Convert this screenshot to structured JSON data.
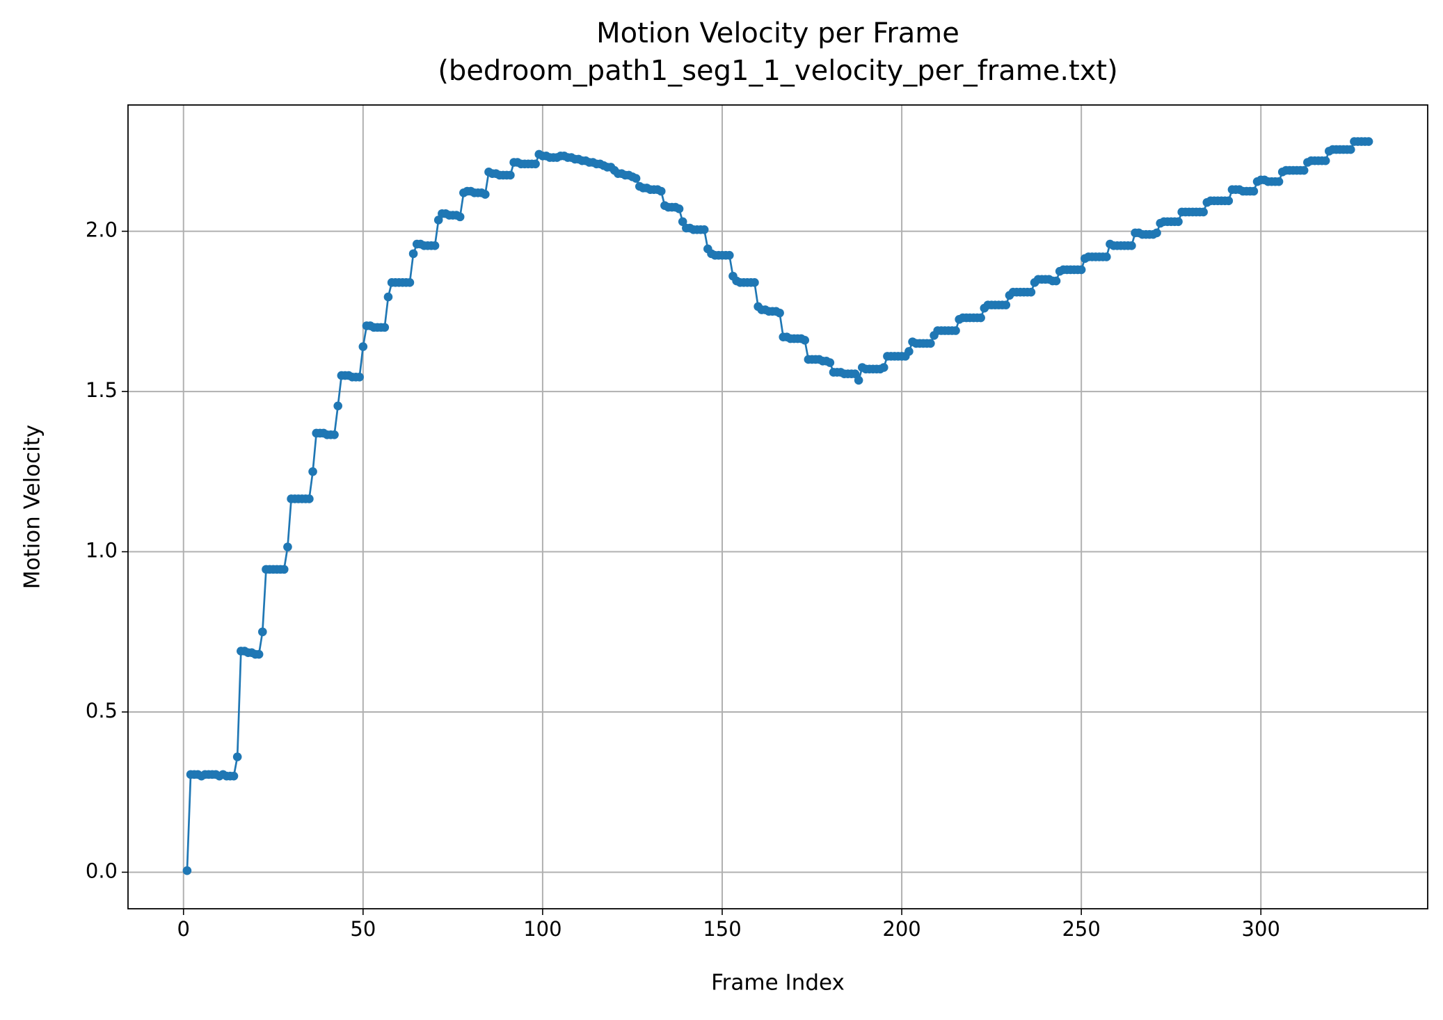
{
  "chart_data": {
    "type": "line",
    "title": "Motion Velocity per Frame",
    "subtitle": "(bedroom_path1_seg1_1_velocity_per_frame.txt)",
    "x_label": "Frame Index",
    "y_label": "Motion Velocity",
    "color": "#1f77b4",
    "markers": true,
    "grid": true,
    "xlim": [
      -15.45,
      346.45
    ],
    "ylim": [
      -0.114,
      2.394
    ],
    "xticks": [
      0,
      50,
      100,
      150,
      200,
      250,
      300
    ],
    "yticks": [
      {
        "value": 0,
        "label": "0.0"
      },
      0.5,
      {
        "value": 1,
        "label": "1.0"
      },
      1.5,
      {
        "value": 2,
        "label": "2.0"
      }
    ],
    "x": [
      1,
      2,
      3,
      4,
      5,
      6,
      7,
      8,
      9,
      10,
      11,
      12,
      13,
      14,
      15,
      16,
      17,
      18,
      19,
      20,
      21,
      22,
      23,
      24,
      25,
      26,
      27,
      28,
      29,
      30,
      31,
      32,
      33,
      34,
      35,
      36,
      37,
      38,
      39,
      40,
      41,
      42,
      43,
      44,
      45,
      46,
      47,
      48,
      49,
      50,
      51,
      52,
      53,
      54,
      55,
      56,
      57,
      58,
      59,
      60,
      61,
      62,
      63,
      64,
      65,
      66,
      67,
      68,
      69,
      70,
      71,
      72,
      73,
      74,
      75,
      76,
      77,
      78,
      79,
      80,
      81,
      82,
      83,
      84,
      85,
      86,
      87,
      88,
      89,
      90,
      91,
      92,
      93,
      94,
      95,
      96,
      97,
      98,
      99,
      100,
      101,
      102,
      103,
      104,
      105,
      106,
      107,
      108,
      109,
      110,
      111,
      112,
      113,
      114,
      115,
      116,
      117,
      118,
      119,
      120,
      121,
      122,
      123,
      124,
      125,
      126,
      127,
      128,
      129,
      130,
      131,
      132,
      133,
      134,
      135,
      136,
      137,
      138,
      139,
      140,
      141,
      142,
      143,
      144,
      145,
      146,
      147,
      148,
      149,
      150,
      151,
      152,
      153,
      154,
      155,
      156,
      157,
      158,
      159,
      160,
      161,
      162,
      163,
      164,
      165,
      166,
      167,
      168,
      169,
      170,
      171,
      172,
      173,
      174,
      175,
      176,
      177,
      178,
      179,
      180,
      181,
      182,
      183,
      184,
      185,
      186,
      187,
      188,
      189,
      190,
      191,
      192,
      193,
      194,
      195,
      196,
      197,
      198,
      199,
      200,
      201,
      202,
      203,
      204,
      205,
      206,
      207,
      208,
      209,
      210,
      211,
      212,
      213,
      214,
      215,
      216,
      217,
      218,
      219,
      220,
      221,
      222,
      223,
      224,
      225,
      226,
      227,
      228,
      229,
      230,
      231,
      232,
      233,
      234,
      235,
      236,
      237,
      238,
      239,
      240,
      241,
      242,
      243,
      244,
      245,
      246,
      247,
      248,
      249,
      250,
      251,
      252,
      253,
      254,
      255,
      256,
      257,
      258,
      259,
      260,
      261,
      262,
      263,
      264,
      265,
      266,
      267,
      268,
      269,
      270,
      271,
      272,
      273,
      274,
      275,
      276,
      277,
      278,
      279,
      280,
      281,
      282,
      283,
      284,
      285,
      286,
      287,
      288,
      289,
      290,
      291,
      292,
      293,
      294,
      295,
      296,
      297,
      298,
      299,
      300,
      301,
      302,
      303,
      304,
      305,
      306,
      307,
      308,
      309,
      310,
      311,
      312,
      313,
      314,
      315,
      316,
      317,
      318,
      319,
      320,
      321,
      322,
      323,
      324,
      325,
      326,
      327,
      328,
      329,
      330
    ],
    "values": [
      0.005,
      0.305,
      0.305,
      0.305,
      0.3,
      0.305,
      0.305,
      0.305,
      0.305,
      0.3,
      0.305,
      0.3,
      0.3,
      0.3,
      0.36,
      0.69,
      0.69,
      0.685,
      0.685,
      0.68,
      0.68,
      0.75,
      0.945,
      0.945,
      0.945,
      0.945,
      0.945,
      0.945,
      1.015,
      1.165,
      1.165,
      1.165,
      1.165,
      1.165,
      1.165,
      1.25,
      1.37,
      1.37,
      1.37,
      1.365,
      1.365,
      1.365,
      1.455,
      1.55,
      1.55,
      1.55,
      1.545,
      1.545,
      1.545,
      1.64,
      1.705,
      1.705,
      1.7,
      1.7,
      1.7,
      1.7,
      1.795,
      1.84,
      1.84,
      1.84,
      1.84,
      1.84,
      1.84,
      1.93,
      1.96,
      1.96,
      1.955,
      1.955,
      1.955,
      1.955,
      2.035,
      2.055,
      2.055,
      2.05,
      2.05,
      2.05,
      2.045,
      2.12,
      2.125,
      2.125,
      2.12,
      2.12,
      2.12,
      2.115,
      2.185,
      2.18,
      2.18,
      2.175,
      2.175,
      2.175,
      2.175,
      2.215,
      2.215,
      2.21,
      2.21,
      2.21,
      2.21,
      2.21,
      2.24,
      2.235,
      2.235,
      2.23,
      2.23,
      2.23,
      2.235,
      2.235,
      2.23,
      2.23,
      2.225,
      2.225,
      2.22,
      2.22,
      2.215,
      2.215,
      2.21,
      2.21,
      2.205,
      2.2,
      2.2,
      2.19,
      2.18,
      2.18,
      2.175,
      2.175,
      2.17,
      2.165,
      2.14,
      2.135,
      2.135,
      2.13,
      2.13,
      2.13,
      2.125,
      2.08,
      2.075,
      2.075,
      2.075,
      2.07,
      2.03,
      2.01,
      2.01,
      2.005,
      2.005,
      2.005,
      2.005,
      1.945,
      1.93,
      1.925,
      1.925,
      1.925,
      1.925,
      1.925,
      1.86,
      1.845,
      1.84,
      1.84,
      1.84,
      1.84,
      1.84,
      1.765,
      1.755,
      1.755,
      1.75,
      1.75,
      1.75,
      1.745,
      1.67,
      1.67,
      1.665,
      1.665,
      1.665,
      1.665,
      1.66,
      1.6,
      1.6,
      1.6,
      1.6,
      1.595,
      1.595,
      1.59,
      1.56,
      1.56,
      1.56,
      1.555,
      1.555,
      1.555,
      1.555,
      1.535,
      1.575,
      1.57,
      1.57,
      1.57,
      1.57,
      1.57,
      1.575,
      1.61,
      1.61,
      1.61,
      1.61,
      1.61,
      1.61,
      1.625,
      1.655,
      1.65,
      1.65,
      1.65,
      1.65,
      1.65,
      1.675,
      1.69,
      1.69,
      1.69,
      1.69,
      1.69,
      1.69,
      1.725,
      1.73,
      1.73,
      1.73,
      1.73,
      1.73,
      1.73,
      1.76,
      1.77,
      1.77,
      1.77,
      1.77,
      1.77,
      1.77,
      1.8,
      1.81,
      1.81,
      1.81,
      1.81,
      1.81,
      1.81,
      1.84,
      1.85,
      1.85,
      1.85,
      1.85,
      1.845,
      1.845,
      1.875,
      1.88,
      1.88,
      1.88,
      1.88,
      1.88,
      1.88,
      1.915,
      1.92,
      1.92,
      1.92,
      1.92,
      1.92,
      1.92,
      1.96,
      1.955,
      1.955,
      1.955,
      1.955,
      1.955,
      1.955,
      1.995,
      1.995,
      1.99,
      1.99,
      1.99,
      1.99,
      1.995,
      2.025,
      2.03,
      2.03,
      2.03,
      2.03,
      2.03,
      2.06,
      2.06,
      2.06,
      2.06,
      2.06,
      2.06,
      2.06,
      2.09,
      2.095,
      2.095,
      2.095,
      2.095,
      2.095,
      2.095,
      2.13,
      2.13,
      2.13,
      2.125,
      2.125,
      2.125,
      2.125,
      2.155,
      2.16,
      2.16,
      2.155,
      2.155,
      2.155,
      2.155,
      2.185,
      2.19,
      2.19,
      2.19,
      2.19,
      2.19,
      2.19,
      2.215,
      2.22,
      2.22,
      2.22,
      2.22,
      2.22,
      2.25,
      2.255,
      2.255,
      2.255,
      2.255,
      2.255,
      2.255,
      2.28,
      2.28,
      2.28,
      2.28,
      2.28
    ]
  }
}
